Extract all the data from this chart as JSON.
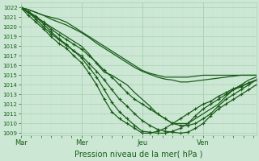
{
  "xlabel": "Pression niveau de la mer( hPa )",
  "bg_color": "#cce8d4",
  "plot_bg_color": "#cce8d4",
  "grid_color_major": "#aacfb5",
  "grid_color_minor": "#c0dfc8",
  "line_color": "#1a5c1a",
  "tick_label_color": "#1a5c1a",
  "axis_label_color": "#1a5c1a",
  "ylim": [
    1008.8,
    1022.5
  ],
  "yticks": [
    1009,
    1010,
    1011,
    1012,
    1013,
    1014,
    1015,
    1016,
    1017,
    1018,
    1019,
    1020,
    1021,
    1022
  ],
  "xtick_labels": [
    "Mar",
    "Mer",
    "Jeu",
    "Ven"
  ],
  "xtick_positions": [
    0,
    24,
    48,
    72
  ],
  "xlim": [
    0,
    93
  ],
  "lines": [
    {
      "x": [
        0,
        3,
        6,
        9,
        12,
        15,
        18,
        21,
        24,
        27,
        30,
        33,
        36,
        39,
        42,
        45,
        48,
        51,
        54,
        57,
        60,
        63,
        66,
        69,
        72,
        75,
        78,
        81,
        84,
        87,
        90,
        93
      ],
      "y": [
        1022,
        1021.5,
        1021,
        1020.5,
        1020,
        1019.5,
        1019,
        1018.5,
        1018,
        1017.2,
        1016.2,
        1015.3,
        1015,
        1014.5,
        1014,
        1013.2,
        1012.5,
        1011.8,
        1011,
        1010.5,
        1010,
        1010,
        1010,
        1010.5,
        1011,
        1011.5,
        1012,
        1012.8,
        1013.5,
        1014,
        1014.5,
        1014.8
      ],
      "marker": null,
      "lw": 0.9,
      "ms": 0
    },
    {
      "x": [
        0,
        3,
        6,
        9,
        12,
        15,
        18,
        21,
        24,
        27,
        30,
        33,
        36,
        39,
        42,
        45,
        48,
        51,
        54,
        57,
        60,
        63,
        66,
        69,
        72,
        75,
        78,
        81,
        84,
        87,
        90,
        93
      ],
      "y": [
        1022,
        1021.8,
        1021.5,
        1021.2,
        1021,
        1020.8,
        1020.5,
        1020,
        1019.5,
        1019,
        1018.5,
        1018,
        1017.5,
        1017,
        1016.5,
        1016,
        1015.5,
        1015.2,
        1015,
        1014.8,
        1014.8,
        1014.8,
        1014.8,
        1014.9,
        1015,
        1015,
        1015,
        1015,
        1015,
        1015,
        1015,
        1015
      ],
      "marker": null,
      "lw": 0.9,
      "ms": 0
    },
    {
      "x": [
        0,
        3,
        6,
        9,
        12,
        15,
        18,
        21,
        24,
        27,
        30,
        33,
        36,
        39,
        42,
        45,
        48,
        51,
        54,
        57,
        60,
        63,
        66,
        69,
        72,
        75,
        78,
        81,
        84,
        87,
        90,
        93
      ],
      "y": [
        1022,
        1021.2,
        1020.5,
        1019.8,
        1019.0,
        1018.3,
        1017.8,
        1017.0,
        1016.3,
        1015.2,
        1014.0,
        1012.5,
        1011.2,
        1010.5,
        1010.0,
        1009.5,
        1009.0,
        1009.0,
        1009.2,
        1009.5,
        1010.0,
        1010.5,
        1011.0,
        1011.5,
        1012.0,
        1012.3,
        1012.8,
        1013.2,
        1013.6,
        1013.9,
        1014.2,
        1014.5
      ],
      "marker": "+",
      "lw": 0.9,
      "ms": 3.0
    },
    {
      "x": [
        0,
        3,
        6,
        9,
        12,
        15,
        18,
        21,
        24,
        27,
        30,
        33,
        36,
        39,
        42,
        45,
        48,
        51,
        54,
        57,
        60,
        63,
        66,
        69,
        72,
        75,
        78,
        81,
        84,
        87,
        90,
        93
      ],
      "y": [
        1022,
        1021.5,
        1021,
        1020.3,
        1019.5,
        1018.8,
        1018.2,
        1017.5,
        1016.8,
        1015.8,
        1014.8,
        1013.5,
        1012.2,
        1011.2,
        1010.5,
        1009.8,
        1009.2,
        1009.1,
        1009.0,
        1009.0,
        1009.2,
        1009.5,
        1010.0,
        1010.8,
        1011.5,
        1012.0,
        1012.5,
        1013.0,
        1013.5,
        1013.8,
        1014.2,
        1014.5
      ],
      "marker": "+",
      "lw": 0.9,
      "ms": 3.0
    },
    {
      "x": [
        0,
        3,
        6,
        9,
        12,
        15,
        18,
        21,
        24,
        27,
        30,
        33,
        36,
        39,
        42,
        45,
        48,
        51,
        54,
        57,
        60,
        63,
        66,
        69,
        72,
        75,
        78,
        81,
        84,
        87,
        90,
        93
      ],
      "y": [
        1022,
        1021.5,
        1020.8,
        1020.0,
        1019.3,
        1018.7,
        1018.1,
        1017.5,
        1017.0,
        1016.2,
        1015.4,
        1014.5,
        1013.5,
        1012.5,
        1011.8,
        1011.0,
        1010.3,
        1009.8,
        1009.4,
        1009.2,
        1009.1,
        1009.0,
        1009.1,
        1009.5,
        1010.0,
        1010.8,
        1011.5,
        1012.0,
        1012.5,
        1013.0,
        1013.5,
        1014.0
      ],
      "marker": "+",
      "lw": 0.9,
      "ms": 3.0
    },
    {
      "x": [
        0,
        3,
        6,
        9,
        12,
        15,
        18,
        21,
        24,
        27,
        30,
        33,
        36,
        39,
        42,
        45,
        48,
        51,
        54,
        57,
        60,
        63,
        66,
        69,
        72,
        75,
        78,
        81,
        84,
        87,
        90,
        93
      ],
      "y": [
        1022,
        1021.6,
        1021.1,
        1020.5,
        1019.8,
        1019.2,
        1018.7,
        1018.2,
        1017.7,
        1017.0,
        1016.3,
        1015.5,
        1014.8,
        1014.0,
        1013.2,
        1012.5,
        1012.0,
        1011.5,
        1011.0,
        1010.5,
        1010.0,
        1009.8,
        1009.8,
        1010.0,
        1010.5,
        1011.0,
        1011.8,
        1012.5,
        1013.0,
        1013.5,
        1014.0,
        1014.5
      ],
      "marker": "+",
      "lw": 0.9,
      "ms": 3.0
    },
    {
      "x": [
        0,
        3,
        6,
        9,
        12,
        15,
        18,
        21,
        24,
        27,
        30,
        33,
        36,
        39,
        42,
        45,
        48,
        51,
        54,
        57,
        60,
        63,
        66,
        69,
        72,
        75,
        78,
        81,
        84,
        87,
        90,
        93
      ],
      "y": [
        1022,
        1021.8,
        1021.5,
        1021.2,
        1020.8,
        1020.5,
        1020.2,
        1019.8,
        1019.4,
        1018.9,
        1018.3,
        1017.8,
        1017.3,
        1016.8,
        1016.3,
        1015.8,
        1015.4,
        1015.1,
        1014.8,
        1014.6,
        1014.5,
        1014.3,
        1014.3,
        1014.4,
        1014.5,
        1014.6,
        1014.7,
        1014.8,
        1014.9,
        1015.0,
        1015.0,
        1015.0
      ],
      "marker": null,
      "lw": 0.9,
      "ms": 0
    }
  ]
}
